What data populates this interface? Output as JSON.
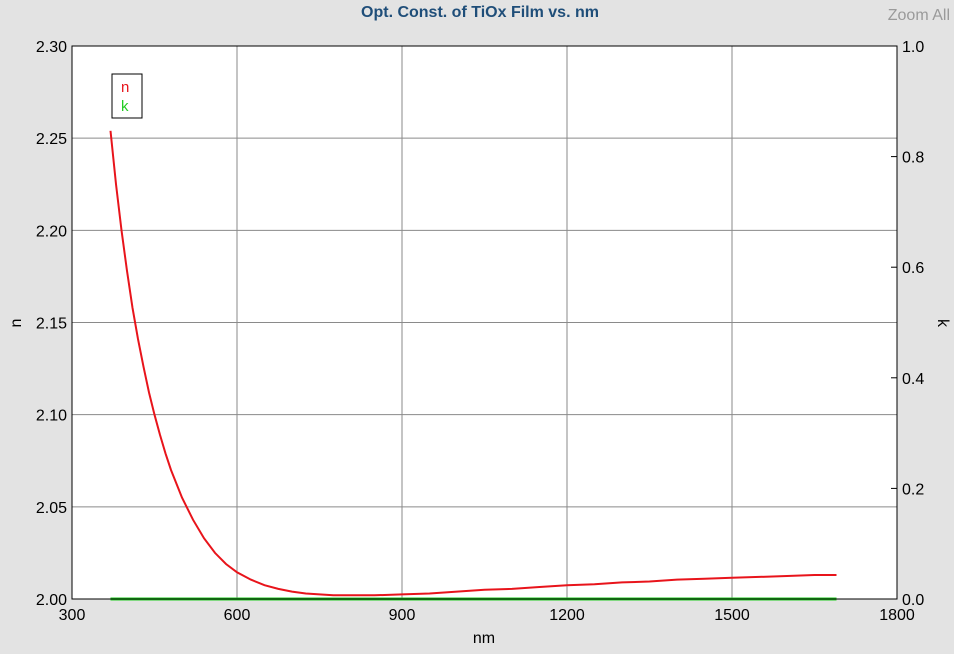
{
  "header": {
    "zoom_label": "Zoom All"
  },
  "chart_data": {
    "type": "line",
    "title": "Opt. Const. of TiOx Film vs. nm",
    "xlabel": "nm",
    "ylabel": "n",
    "y2label": "k",
    "xlim": [
      300,
      1800
    ],
    "ylim": [
      2.0,
      2.3
    ],
    "y2lim": [
      0.0,
      1.0
    ],
    "x_ticks": [
      "300",
      "600",
      "900",
      "1200",
      "1500",
      "1800"
    ],
    "y_ticks": [
      "2.00",
      "2.05",
      "2.10",
      "2.15",
      "2.20",
      "2.25",
      "2.30"
    ],
    "y2_ticks": [
      "0.0",
      "0.2",
      "0.4",
      "0.6",
      "0.8",
      "1.0"
    ],
    "grid": true,
    "legend_position": "top-left",
    "series": [
      {
        "name": "n",
        "color": "#e8141b",
        "axis": "left",
        "x": [
          370,
          380,
          390,
          400,
          410,
          420,
          430,
          440,
          450,
          460,
          470,
          480,
          500,
          520,
          540,
          560,
          580,
          600,
          625,
          650,
          675,
          700,
          725,
          750,
          775,
          800,
          850,
          900,
          950,
          1000,
          1050,
          1100,
          1150,
          1200,
          1250,
          1300,
          1350,
          1400,
          1450,
          1500,
          1550,
          1600,
          1650,
          1690
        ],
        "values": [
          2.254,
          2.225,
          2.2,
          2.178,
          2.158,
          2.141,
          2.126,
          2.112,
          2.1,
          2.089,
          2.079,
          2.07,
          2.055,
          2.043,
          2.033,
          2.025,
          2.019,
          2.0145,
          2.0105,
          2.0075,
          2.0055,
          2.004,
          2.003,
          2.0025,
          2.002,
          2.002,
          2.002,
          2.0025,
          2.003,
          2.004,
          2.005,
          2.0055,
          2.0065,
          2.0075,
          2.008,
          2.009,
          2.0095,
          2.0105,
          2.011,
          2.0115,
          2.012,
          2.0125,
          2.013,
          2.013
        ]
      },
      {
        "name": "k",
        "color": "#22cc22",
        "axis": "right",
        "x": [
          370,
          1690
        ],
        "values": [
          0.0,
          0.0
        ]
      }
    ]
  }
}
